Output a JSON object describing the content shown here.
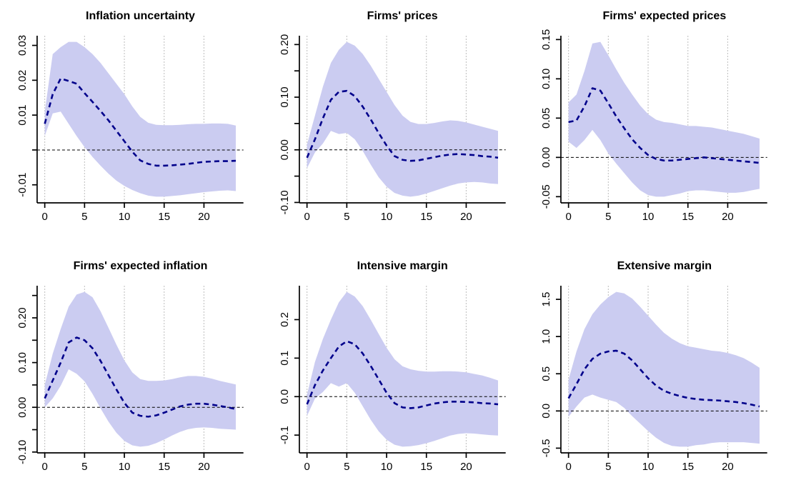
{
  "figure": {
    "background": "#ffffff",
    "rows": 2,
    "cols": 3
  },
  "colors": {
    "band": "#cbccf1",
    "line": "#00008b",
    "grid": "#c3c3c3",
    "zero_line": "#000000",
    "axis": "#000000",
    "text": "#000000"
  },
  "chart_data": [
    {
      "type": "area",
      "title": "Inflation uncertainty",
      "xlabel": "",
      "ylabel": "",
      "xlim": [
        0,
        24
      ],
      "axis_pad_frac": 0.04,
      "grid_on": true,
      "zero_line": true,
      "x": [
        0,
        1,
        2,
        3,
        4,
        5,
        6,
        7,
        8,
        9,
        10,
        11,
        12,
        13,
        14,
        15,
        16,
        17,
        18,
        19,
        20,
        21,
        22,
        23,
        24
      ],
      "series": [
        {
          "name": "response",
          "values": [
            0.0075,
            0.016,
            0.0205,
            0.0198,
            0.019,
            0.0163,
            0.0138,
            0.0112,
            0.0085,
            0.0055,
            0.0025,
            -0.0005,
            -0.003,
            -0.004,
            -0.0045,
            -0.0045,
            -0.0044,
            -0.0042,
            -0.004,
            -0.0037,
            -0.0034,
            -0.0033,
            -0.0032,
            -0.0032,
            -0.0031
          ]
        },
        {
          "name": "upper_band",
          "values": [
            0.011,
            0.0275,
            0.0295,
            0.031,
            0.031,
            0.0295,
            0.0275,
            0.025,
            0.022,
            0.019,
            0.016,
            0.0125,
            0.0095,
            0.0078,
            0.0072,
            0.0071,
            0.0071,
            0.0072,
            0.0074,
            0.0075,
            0.0075,
            0.0076,
            0.0076,
            0.0075,
            0.007
          ]
        },
        {
          "name": "lower_band",
          "values": [
            0.004,
            0.0105,
            0.011,
            0.0075,
            0.004,
            0.0008,
            -0.002,
            -0.0045,
            -0.0068,
            -0.0088,
            -0.0103,
            -0.0115,
            -0.0124,
            -0.0131,
            -0.0134,
            -0.0134,
            -0.0132,
            -0.013,
            -0.0127,
            -0.0124,
            -0.0121,
            -0.0119,
            -0.0117,
            -0.0116,
            -0.0118
          ]
        }
      ],
      "xticks": [
        0,
        5,
        10,
        15,
        20
      ],
      "xtick_labels": [
        "0",
        "5",
        "10",
        "15",
        "20"
      ],
      "yticks": [
        -0.01,
        0,
        0.01,
        0.02,
        0.03
      ],
      "ytick_labels": [
        "-0.01",
        "",
        "0.01",
        "0.02",
        "0.03"
      ],
      "grid_x": [
        0,
        5,
        10,
        15,
        20
      ]
    },
    {
      "type": "area",
      "title": "Firms' prices",
      "xlabel": "",
      "ylabel": "",
      "xlim": [
        0,
        24
      ],
      "axis_pad_frac": 0.04,
      "grid_on": true,
      "zero_line": true,
      "x": [
        0,
        1,
        2,
        3,
        4,
        5,
        6,
        7,
        8,
        9,
        10,
        11,
        12,
        13,
        14,
        15,
        16,
        17,
        18,
        19,
        20,
        21,
        22,
        23,
        24
      ],
      "series": [
        {
          "name": "response",
          "values": [
            -0.015,
            0.02,
            0.06,
            0.095,
            0.11,
            0.112,
            0.102,
            0.082,
            0.058,
            0.032,
            0.008,
            -0.012,
            -0.019,
            -0.021,
            -0.02,
            -0.017,
            -0.014,
            -0.011,
            -0.009,
            -0.008,
            -0.009,
            -0.01,
            -0.012,
            -0.013,
            -0.015
          ]
        },
        {
          "name": "upper_band",
          "values": [
            0.01,
            0.065,
            0.12,
            0.165,
            0.19,
            0.205,
            0.198,
            0.182,
            0.16,
            0.135,
            0.11,
            0.085,
            0.065,
            0.053,
            0.049,
            0.049,
            0.051,
            0.054,
            0.056,
            0.055,
            0.052,
            0.048,
            0.044,
            0.04,
            0.036
          ]
        },
        {
          "name": "lower_band",
          "values": [
            -0.035,
            -0.005,
            0.012,
            0.036,
            0.03,
            0.032,
            0.02,
            -0.002,
            -0.028,
            -0.052,
            -0.07,
            -0.082,
            -0.087,
            -0.089,
            -0.087,
            -0.083,
            -0.078,
            -0.073,
            -0.068,
            -0.064,
            -0.062,
            -0.061,
            -0.062,
            -0.064,
            -0.065
          ]
        }
      ],
      "xticks": [
        0,
        5,
        10,
        15,
        20
      ],
      "xtick_labels": [
        "0",
        "5",
        "10",
        "15",
        "20"
      ],
      "yticks": [
        -0.1,
        -0.05,
        0,
        0.05,
        0.1,
        0.15,
        0.2
      ],
      "ytick_labels": [
        "-0.10",
        "",
        "0.00",
        "",
        "0.10",
        "",
        "0.20"
      ],
      "grid_x": [
        0,
        5,
        10,
        15,
        20
      ]
    },
    {
      "type": "area",
      "title": "Firms' expected prices",
      "xlabel": "",
      "ylabel": "",
      "xlim": [
        0,
        24
      ],
      "axis_pad_frac": 0.04,
      "grid_on": true,
      "zero_line": true,
      "x": [
        0,
        1,
        2,
        3,
        4,
        5,
        6,
        7,
        8,
        9,
        10,
        11,
        12,
        13,
        14,
        15,
        16,
        17,
        18,
        19,
        20,
        21,
        22,
        23,
        24
      ],
      "series": [
        {
          "name": "response",
          "values": [
            0.045,
            0.047,
            0.065,
            0.088,
            0.085,
            0.069,
            0.052,
            0.037,
            0.023,
            0.012,
            0.003,
            -0.002,
            -0.004,
            -0.004,
            -0.003,
            -0.002,
            -0.001,
            0,
            -0.001,
            -0.002,
            -0.003,
            -0.004,
            -0.005,
            -0.006,
            -0.007
          ]
        },
        {
          "name": "upper_band",
          "values": [
            0.07,
            0.08,
            0.11,
            0.145,
            0.147,
            0.13,
            0.112,
            0.095,
            0.08,
            0.066,
            0.055,
            0.048,
            0.045,
            0.044,
            0.042,
            0.04,
            0.04,
            0.039,
            0.038,
            0.036,
            0.034,
            0.032,
            0.03,
            0.027,
            0.024
          ]
        },
        {
          "name": "lower_band",
          "values": [
            0.02,
            0.012,
            0.022,
            0.035,
            0.022,
            0.005,
            -0.008,
            -0.02,
            -0.032,
            -0.042,
            -0.048,
            -0.05,
            -0.05,
            -0.048,
            -0.046,
            -0.043,
            -0.042,
            -0.042,
            -0.043,
            -0.044,
            -0.045,
            -0.045,
            -0.044,
            -0.042,
            -0.04
          ]
        }
      ],
      "xticks": [
        0,
        5,
        10,
        15,
        20
      ],
      "xtick_labels": [
        "0",
        "5",
        "10",
        "15",
        "20"
      ],
      "yticks": [
        -0.05,
        0,
        0.05,
        0.1,
        0.15
      ],
      "ytick_labels": [
        "-0.05",
        "0.00",
        "0.05",
        "0.10",
        "0.15"
      ],
      "grid_x": [
        0,
        5,
        10,
        15,
        20
      ]
    },
    {
      "type": "area",
      "title": "Firms' expected inflation",
      "xlabel": "",
      "ylabel": "",
      "xlim": [
        0,
        24
      ],
      "axis_pad_frac": 0.04,
      "grid_on": true,
      "zero_line": true,
      "x": [
        0,
        1,
        2,
        3,
        4,
        5,
        6,
        7,
        8,
        9,
        10,
        11,
        12,
        13,
        14,
        15,
        16,
        17,
        18,
        19,
        20,
        21,
        22,
        23,
        24
      ],
      "series": [
        {
          "name": "response",
          "values": [
            0.02,
            0.06,
            0.1,
            0.145,
            0.156,
            0.15,
            0.132,
            0.104,
            0.072,
            0.04,
            0.01,
            -0.012,
            -0.019,
            -0.021,
            -0.018,
            -0.012,
            -0.005,
            0.002,
            0.006,
            0.008,
            0.008,
            0.006,
            0.003,
            0,
            -0.004
          ]
        },
        {
          "name": "upper_band",
          "values": [
            0.05,
            0.12,
            0.175,
            0.225,
            0.252,
            0.258,
            0.246,
            0.215,
            0.178,
            0.14,
            0.105,
            0.078,
            0.063,
            0.059,
            0.059,
            0.06,
            0.063,
            0.067,
            0.07,
            0.07,
            0.068,
            0.064,
            0.059,
            0.055,
            0.051
          ]
        },
        {
          "name": "lower_band",
          "values": [
            0,
            0.02,
            0.048,
            0.085,
            0.075,
            0.058,
            0.03,
            -0.002,
            -0.032,
            -0.057,
            -0.075,
            -0.085,
            -0.088,
            -0.086,
            -0.08,
            -0.072,
            -0.063,
            -0.055,
            -0.049,
            -0.046,
            -0.045,
            -0.046,
            -0.048,
            -0.049,
            -0.05
          ]
        }
      ],
      "xticks": [
        0,
        5,
        10,
        15,
        20
      ],
      "xtick_labels": [
        "0",
        "5",
        "10",
        "15",
        "20"
      ],
      "yticks": [
        -0.1,
        -0.05,
        0,
        0.05,
        0.1,
        0.15,
        0.2,
        0.25
      ],
      "ytick_labels": [
        "-0.10",
        "",
        "0.00",
        "",
        "0.10",
        "",
        "0.20",
        ""
      ],
      "grid_x": [
        0,
        5,
        10,
        15,
        20
      ]
    },
    {
      "type": "area",
      "title": "Intensive margin",
      "xlabel": "",
      "ylabel": "",
      "xlim": [
        0,
        24
      ],
      "axis_pad_frac": 0.04,
      "grid_on": true,
      "zero_line": true,
      "x": [
        0,
        1,
        2,
        3,
        4,
        5,
        6,
        7,
        8,
        9,
        10,
        11,
        12,
        13,
        14,
        15,
        16,
        17,
        18,
        19,
        20,
        21,
        22,
        23,
        24
      ],
      "series": [
        {
          "name": "response",
          "values": [
            -0.02,
            0.03,
            0.068,
            0.1,
            0.13,
            0.144,
            0.136,
            0.112,
            0.08,
            0.045,
            0.01,
            -0.017,
            -0.028,
            -0.03,
            -0.028,
            -0.023,
            -0.018,
            -0.015,
            -0.013,
            -0.013,
            -0.014,
            -0.015,
            -0.017,
            -0.018,
            -0.02
          ]
        },
        {
          "name": "upper_band",
          "values": [
            0.005,
            0.09,
            0.15,
            0.2,
            0.245,
            0.272,
            0.26,
            0.235,
            0.2,
            0.163,
            0.127,
            0.097,
            0.079,
            0.071,
            0.067,
            0.065,
            0.065,
            0.066,
            0.066,
            0.065,
            0.063,
            0.059,
            0.055,
            0.049,
            0.042
          ]
        },
        {
          "name": "lower_band",
          "values": [
            -0.05,
            -0.005,
            0.012,
            0.035,
            0.026,
            0.035,
            0.01,
            -0.025,
            -0.06,
            -0.09,
            -0.112,
            -0.125,
            -0.13,
            -0.129,
            -0.126,
            -0.121,
            -0.115,
            -0.108,
            -0.101,
            -0.097,
            -0.095,
            -0.096,
            -0.098,
            -0.1,
            -0.101
          ]
        }
      ],
      "xticks": [
        0,
        5,
        10,
        15,
        20
      ],
      "xtick_labels": [
        "0",
        "5",
        "10",
        "15",
        "20"
      ],
      "yticks": [
        -0.1,
        0,
        0.1,
        0.2
      ],
      "ytick_labels": [
        "-0.1",
        "0.0",
        "0.1",
        "0.2"
      ],
      "grid_x": [
        0,
        5,
        10,
        15,
        20
      ]
    },
    {
      "type": "area",
      "title": "Extensive margin",
      "xlabel": "",
      "ylabel": "",
      "xlim": [
        0,
        24
      ],
      "axis_pad_frac": 0.04,
      "grid_on": true,
      "zero_line": true,
      "x": [
        0,
        1,
        2,
        3,
        4,
        5,
        6,
        7,
        8,
        9,
        10,
        11,
        12,
        13,
        14,
        15,
        16,
        17,
        18,
        19,
        20,
        21,
        22,
        23,
        24
      ],
      "series": [
        {
          "name": "response",
          "values": [
            0.17,
            0.36,
            0.56,
            0.7,
            0.77,
            0.8,
            0.81,
            0.77,
            0.68,
            0.56,
            0.44,
            0.34,
            0.27,
            0.23,
            0.2,
            0.175,
            0.16,
            0.15,
            0.145,
            0.14,
            0.13,
            0.12,
            0.105,
            0.085,
            0.06
          ]
        },
        {
          "name": "upper_band",
          "values": [
            0.42,
            0.8,
            1.1,
            1.3,
            1.43,
            1.53,
            1.6,
            1.58,
            1.51,
            1.4,
            1.28,
            1.16,
            1.05,
            0.97,
            0.91,
            0.87,
            0.85,
            0.83,
            0.81,
            0.8,
            0.78,
            0.75,
            0.71,
            0.65,
            0.58
          ]
        },
        {
          "name": "lower_band",
          "values": [
            -0.08,
            0.06,
            0.18,
            0.22,
            0.18,
            0.15,
            0.12,
            0.04,
            -0.07,
            -0.17,
            -0.27,
            -0.36,
            -0.43,
            -0.47,
            -0.48,
            -0.48,
            -0.46,
            -0.45,
            -0.43,
            -0.42,
            -0.42,
            -0.42,
            -0.42,
            -0.43,
            -0.44
          ]
        }
      ],
      "xticks": [
        0,
        5,
        10,
        15,
        20
      ],
      "xtick_labels": [
        "0",
        "5",
        "10",
        "15",
        "20"
      ],
      "yticks": [
        -0.5,
        0,
        0.5,
        1.0,
        1.5
      ],
      "ytick_labels": [
        "-0.5",
        "0.0",
        "0.5",
        "1.0",
        "1.5"
      ],
      "grid_x": [
        0,
        5,
        10,
        15,
        20
      ]
    }
  ]
}
